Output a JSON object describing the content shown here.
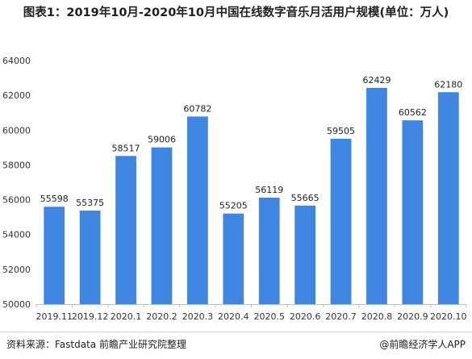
{
  "title": "图表1：2019年10月-2020年10月中国在线数字音乐月活用户规模(单位：万人)",
  "source": "资料来源：Fastdata 前瞻产业研究院整理",
  "brand": "@前瞻经济学人APP",
  "chart_data": {
    "type": "bar",
    "categories": [
      "2019.11",
      "2019.12",
      "2020.1",
      "2020.2",
      "2020.3",
      "2020.4",
      "2020.5",
      "2020.6",
      "2020.7",
      "2020.8",
      "2020.9",
      "2020.10"
    ],
    "values": [
      55598,
      55375,
      58517,
      59006,
      60782,
      55205,
      56119,
      55665,
      59505,
      62429,
      60562,
      62180
    ],
    "ylim": [
      50000,
      64000
    ],
    "yticks": [
      50000,
      52000,
      54000,
      56000,
      58000,
      60000,
      62000,
      64000
    ],
    "bar_color": "#3f86e3",
    "grid": false
  }
}
